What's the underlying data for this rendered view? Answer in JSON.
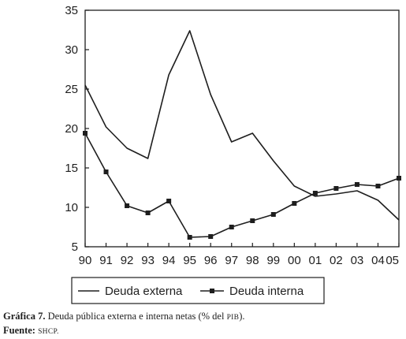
{
  "chart_data": {
    "type": "line",
    "categories": [
      "90",
      "91",
      "92",
      "93",
      "94",
      "95",
      "96",
      "97",
      "98",
      "99",
      "00",
      "01",
      "02",
      "03",
      "04",
      "05"
    ],
    "series": [
      {
        "name": "Deuda externa",
        "values": [
          25.5,
          20.2,
          17.5,
          16.2,
          26.8,
          32.4,
          24.3,
          18.3,
          19.4,
          15.9,
          12.7,
          11.4,
          11.7,
          12.1,
          10.9,
          8.4
        ],
        "marker": "none"
      },
      {
        "name": "Deuda interna",
        "values": [
          19.4,
          14.5,
          10.2,
          9.3,
          10.8,
          6.2,
          6.3,
          7.5,
          8.3,
          9.1,
          10.5,
          11.8,
          12.4,
          12.9,
          12.7,
          13.7
        ],
        "marker": "square"
      }
    ],
    "yticks": [
      "5",
      "10",
      "15",
      "20",
      "25",
      "30",
      "35"
    ],
    "ylim": [
      5,
      35
    ],
    "grid": false,
    "legend_position": "bottom"
  },
  "caption": {
    "figure_label": "Gráfica 7.",
    "text_before": "Deuda pública externa e interna netas (% del ",
    "text_smallcaps": "pib",
    "text_after": ").",
    "source_label": "Fuente:",
    "source_text": "shcp."
  },
  "colors": {
    "ink": "#1e1e1e",
    "background": "#ffffff"
  }
}
